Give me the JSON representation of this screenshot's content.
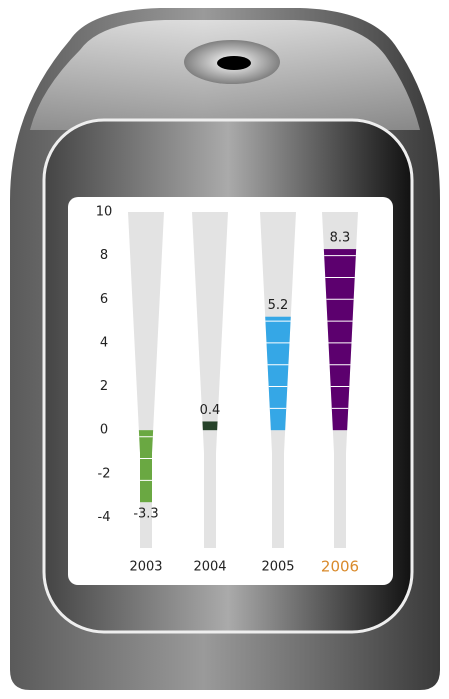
{
  "chart_data": {
    "type": "bar",
    "categories": [
      "2003",
      "2004",
      "2005",
      "2006"
    ],
    "series": [
      {
        "values": [
          -3.3,
          0.4,
          5.2,
          8.3
        ]
      }
    ],
    "colors": [
      "#6aa842",
      "#27432a",
      "#35a7e6",
      "#5c006e"
    ],
    "highlight_category": 3,
    "highlight_color": "#d98a2b",
    "ylim": [
      -5.4,
      10
    ],
    "yticks": [
      -4,
      -2,
      0,
      2,
      4,
      6,
      8,
      10
    ]
  }
}
